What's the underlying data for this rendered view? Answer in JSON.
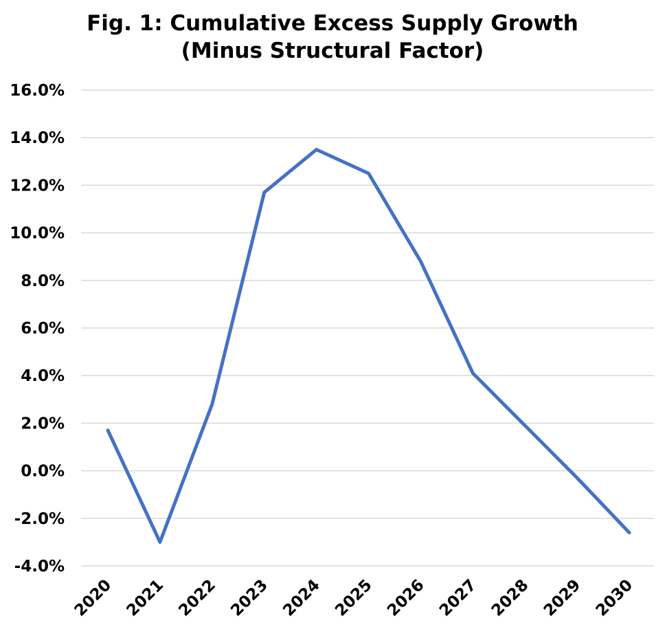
{
  "chart_data": {
    "type": "line",
    "title": "Fig. 1: Cumulative Excess Supply Growth",
    "subtitle": "(Minus Structural Factor)",
    "xlabel": "",
    "ylabel": "",
    "categories": [
      "2020",
      "2021",
      "2022",
      "2023",
      "2024",
      "2025",
      "2026",
      "2027",
      "2028",
      "2029",
      "2030"
    ],
    "series": [
      {
        "values": [
          1.7,
          -3.0,
          2.8,
          11.7,
          13.5,
          12.5,
          8.8,
          4.1,
          1.9,
          -0.3,
          -2.6
        ]
      }
    ],
    "ylim": [
      -4.0,
      16.0
    ],
    "yticks": [
      16.0,
      14.0,
      12.0,
      10.0,
      8.0,
      6.0,
      4.0,
      2.0,
      0.0,
      -2.0,
      -4.0
    ],
    "ytick_labels": [
      "16.0%",
      "14.0%",
      "12.0%",
      "10.0%",
      "8.0%",
      "6.0%",
      "4.0%",
      "2.0%",
      "0.0%",
      "-2.0%",
      "-4.0%"
    ],
    "grid": true,
    "legend": "none",
    "colors": {
      "line": "#4472C4",
      "grid": "#D9D9D9",
      "text": "#000000"
    }
  }
}
